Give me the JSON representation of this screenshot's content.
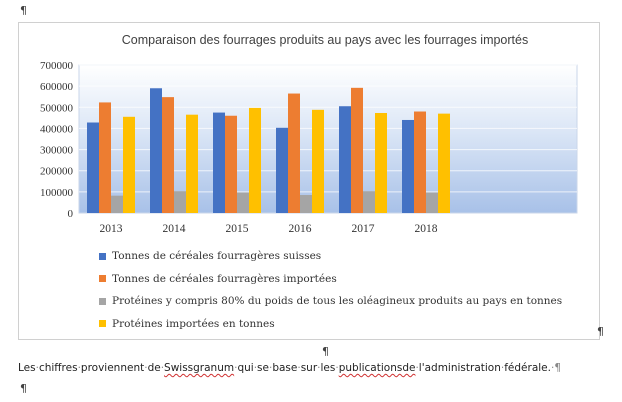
{
  "pilcrow": "¶",
  "chart_data": {
    "type": "bar",
    "title": "Comparaison des fourrages produits au pays avec les fourrages importés",
    "xlabel": "",
    "ylabel": "",
    "categories": [
      "2013",
      "2014",
      "2015",
      "2016",
      "2017",
      "2018"
    ],
    "ylim": [
      0,
      700000
    ],
    "yticks": [
      0,
      100000,
      200000,
      300000,
      400000,
      500000,
      600000,
      700000
    ],
    "grid": true,
    "legend_position": "bottom",
    "series": [
      {
        "name": "Tonnes de céréales fourragères suisses",
        "color": "#4472C4",
        "values": [
          428000,
          590000,
          475000,
          403000,
          505000,
          440000
        ]
      },
      {
        "name": "Tonnes de céréales fourragères importées",
        "color": "#ED7D31",
        "values": [
          523000,
          548000,
          460000,
          565000,
          592000,
          480000
        ]
      },
      {
        "name": "Protéines y compris 80% du poids de tous les oléagineux produits au pays en tonnes",
        "color": "#A5A5A5",
        "values": [
          82000,
          103000,
          97000,
          85000,
          103000,
          97000
        ]
      },
      {
        "name": "Protéines importées en tonnes",
        "color": "#FFC000",
        "values": [
          455000,
          465000,
          497000,
          488000,
          473000,
          470000
        ]
      }
    ]
  },
  "note": {
    "words": [
      {
        "text": "Les",
        "squiggle": false
      },
      {
        "text": "chiffres",
        "squiggle": false
      },
      {
        "text": "proviennent",
        "squiggle": false
      },
      {
        "text": "de",
        "squiggle": false
      },
      {
        "text": "Swissgranum",
        "squiggle": true
      },
      {
        "text": "qui",
        "squiggle": false
      },
      {
        "text": "se",
        "squiggle": false
      },
      {
        "text": "base",
        "squiggle": false
      },
      {
        "text": "sur",
        "squiggle": false
      },
      {
        "text": "les",
        "squiggle": false
      },
      {
        "text": "publicationsde",
        "squiggle": true
      },
      {
        "text": "l'administration",
        "squiggle": false
      },
      {
        "text": "fédérale.",
        "squiggle": false
      }
    ]
  }
}
